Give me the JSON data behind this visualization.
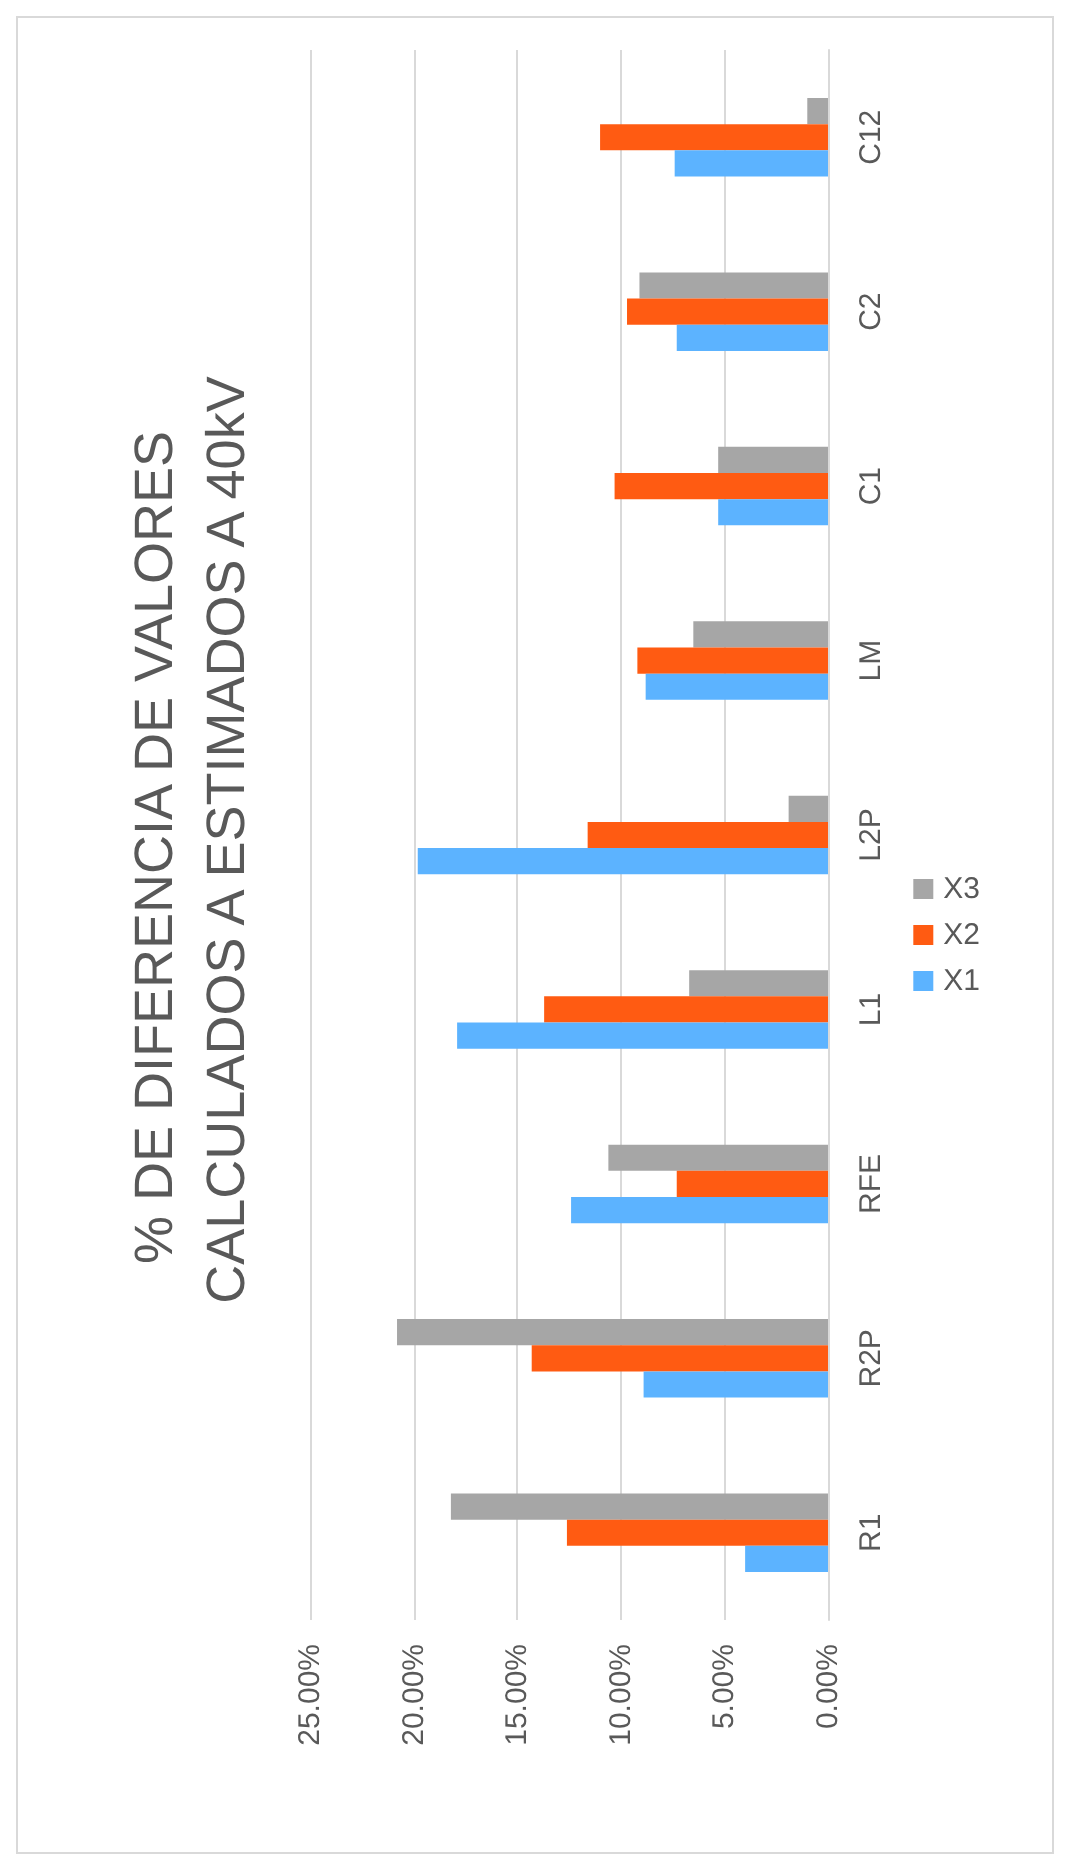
{
  "chart_data": {
    "type": "bar",
    "orientation": "horizontal",
    "title": "% DE DIFERENCIA DE VALORES CALCULADOS A ESTIMADOS A 40kV",
    "categories": [
      "C12",
      "C2",
      "C1",
      "LM",
      "L2P",
      "L1",
      "RFE",
      "R2P",
      "R1"
    ],
    "series": [
      {
        "name": "X1",
        "color": "#5cb3ff",
        "values": [
          7.4,
          7.3,
          5.3,
          8.8,
          19.8,
          17.9,
          12.4,
          8.9,
          4.0
        ]
      },
      {
        "name": "X2",
        "color": "#ff5b12",
        "values": [
          11.0,
          9.7,
          10.3,
          9.2,
          11.6,
          13.7,
          7.3,
          14.3,
          12.6
        ]
      },
      {
        "name": "X3",
        "color": "#a6a6a6",
        "values": [
          1.0,
          9.1,
          5.3,
          6.5,
          1.9,
          6.7,
          10.6,
          20.8,
          18.2
        ]
      }
    ],
    "xlim": [
      25,
      0
    ],
    "xticks": [
      {
        "value": 0,
        "label": "0.00%"
      },
      {
        "value": 5,
        "label": "5.00%"
      },
      {
        "value": 10,
        "label": "10.00%"
      },
      {
        "value": 15,
        "label": "15.00%"
      },
      {
        "value": 20,
        "label": "20.00%"
      },
      {
        "value": 25,
        "label": "25.00%"
      }
    ],
    "grid": "x",
    "legend": "right"
  }
}
